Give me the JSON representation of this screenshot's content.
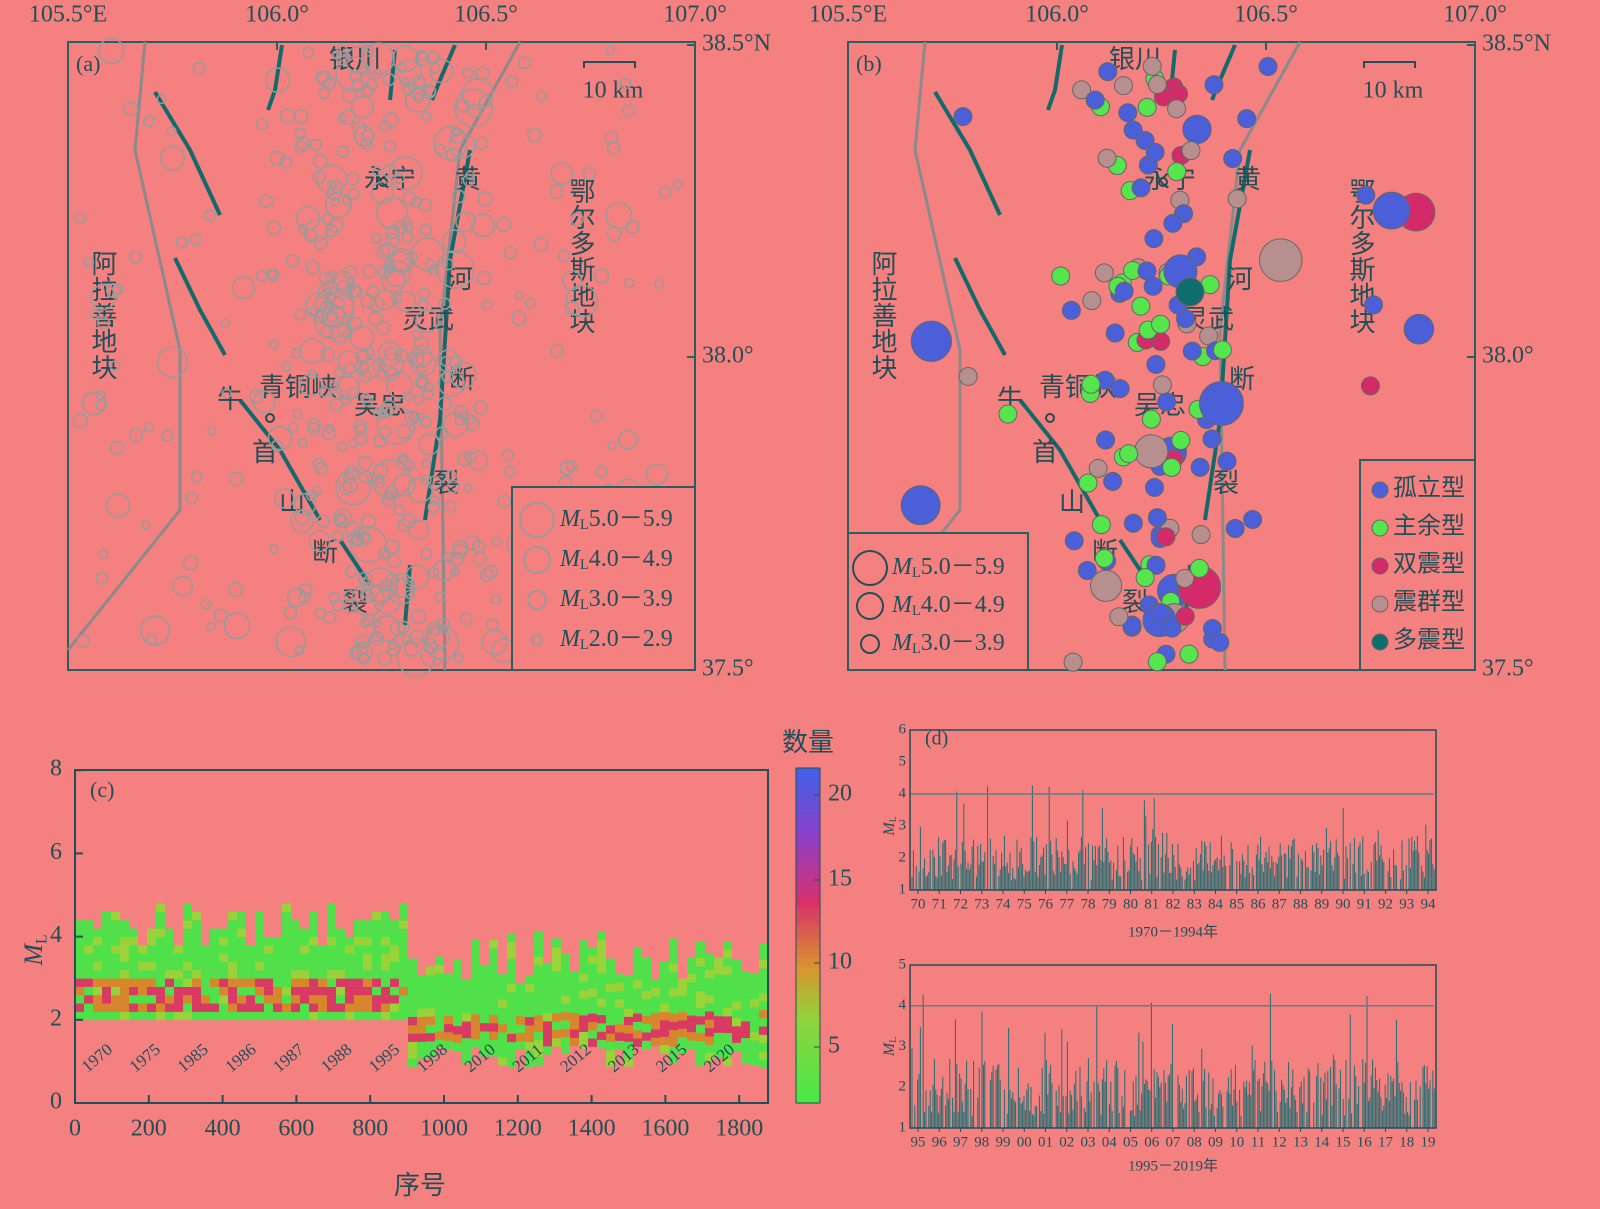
{
  "panel_a": {
    "label": "(a)",
    "lon_ticks": [
      "105.5°E",
      "106.0°",
      "106.5°",
      "107.0°"
    ],
    "lat_ticks": [
      "38.5°N",
      "38.0°",
      "37.5°"
    ],
    "scale": "10 km",
    "places": [
      "银川",
      "永宁",
      "黄",
      "河",
      "灵武",
      "断",
      "裂",
      "阿拉善地块",
      "鄂尔多斯地块",
      "青铜峡",
      "吴忠",
      "牛",
      "首",
      "山",
      "断",
      "裂"
    ],
    "legend": [
      {
        "symbol": "M",
        "sub": "L",
        "range": "5.0－5.9"
      },
      {
        "symbol": "M",
        "sub": "L",
        "range": "4.0－4.9"
      },
      {
        "symbol": "M",
        "sub": "L",
        "range": "3.0－3.9"
      },
      {
        "symbol": "M",
        "sub": "L",
        "range": "2.0－2.9"
      }
    ]
  },
  "panel_b": {
    "label": "(b)",
    "lon_ticks": [
      "105.5°E",
      "106.0°",
      "106.5°",
      "107.0°"
    ],
    "lat_ticks": [
      "38.5°N",
      "38.0°",
      "37.5°"
    ],
    "scale": "10 km",
    "places": [
      "银川",
      "永宁",
      "黄",
      "河",
      "灵武",
      "断",
      "裂",
      "阿拉善地块",
      "鄂尔多斯地块",
      "青铜峡",
      "吴忠",
      "牛",
      "首",
      "山",
      "断",
      "裂"
    ],
    "size_legend": [
      {
        "symbol": "M",
        "sub": "L",
        "range": "5.0－5.9"
      },
      {
        "symbol": "M",
        "sub": "L",
        "range": "4.0－4.9"
      },
      {
        "symbol": "M",
        "sub": "L",
        "range": "3.0－3.9"
      }
    ],
    "type_legend": [
      {
        "name": "孤立型",
        "color": "#4a5fd8"
      },
      {
        "name": "主余型",
        "color": "#55e64e"
      },
      {
        "name": "双震型",
        "color": "#d42a6a"
      },
      {
        "name": "震群型",
        "color": "#b88f8f"
      },
      {
        "name": "多震型",
        "color": "#0f6d6d"
      }
    ]
  },
  "panel_c": {
    "label": "(c)",
    "y_label": {
      "symbol": "M",
      "sub": "L"
    },
    "x_label": "序号",
    "colorbar_title": "数量",
    "xticks": [
      "0",
      "200",
      "400",
      "600",
      "800",
      "1000",
      "1200",
      "1400",
      "1600",
      "1800"
    ],
    "yticks": [
      "0",
      "2",
      "4",
      "6",
      "8"
    ],
    "colorbar_ticks": [
      "5",
      "10",
      "15",
      "20"
    ],
    "years": [
      "1970",
      "1975",
      "1985",
      "1986",
      "1987",
      "1988",
      "1995",
      "1998",
      "2010",
      "2011",
      "2012",
      "2013",
      "2015",
      "2020"
    ]
  },
  "panel_d": {
    "label": "(d)",
    "y_label": {
      "symbol": "M",
      "sub": "L"
    },
    "top": {
      "yticks": [
        "1",
        "2",
        "3",
        "4",
        "5",
        "6"
      ],
      "xticks": [
        "70",
        "71",
        "72",
        "73",
        "74",
        "75",
        "76",
        "77",
        "78",
        "79",
        "80",
        "81",
        "82",
        "83",
        "84",
        "85",
        "86",
        "87",
        "88",
        "89",
        "90",
        "91",
        "92",
        "93",
        "94"
      ],
      "caption": "1970－1994年"
    },
    "bottom": {
      "yticks": [
        "1",
        "2",
        "3",
        "4",
        "5"
      ],
      "xticks": [
        "95",
        "96",
        "97",
        "98",
        "99",
        "00",
        "01",
        "02",
        "03",
        "04",
        "05",
        "06",
        "07",
        "08",
        "09",
        "10",
        "11",
        "12",
        "13",
        "14",
        "15",
        "16",
        "17",
        "18",
        "19"
      ],
      "caption": "1995－2019年"
    }
  }
}
